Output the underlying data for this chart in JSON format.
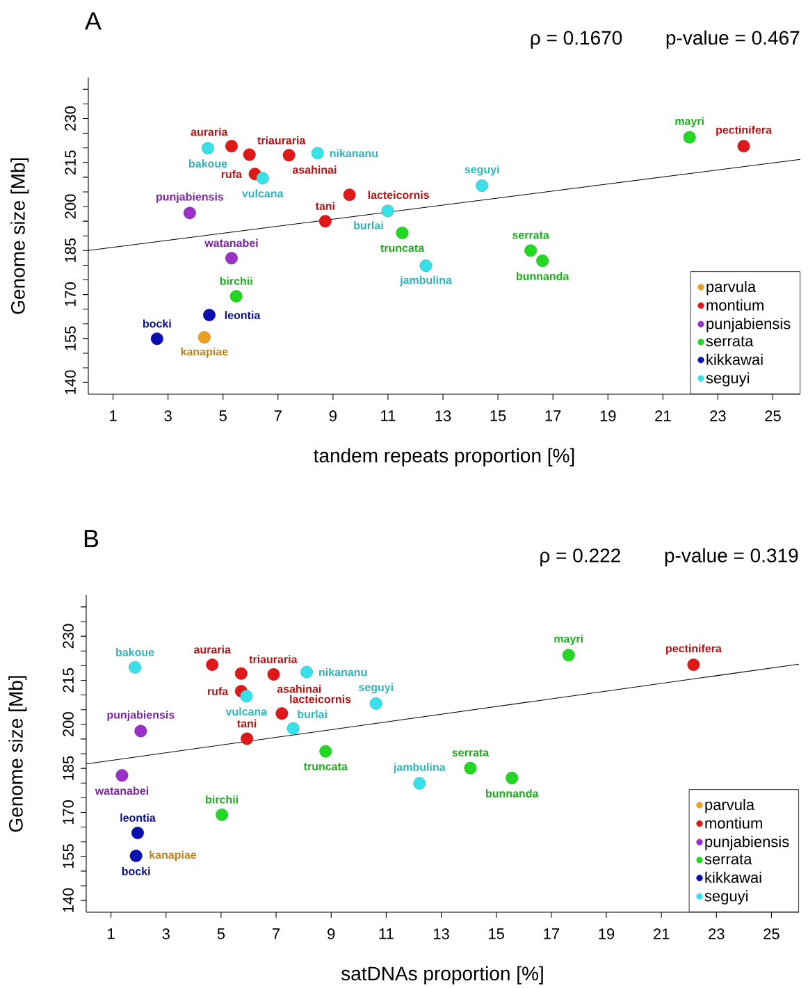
{
  "chart_data": [
    {
      "type": "scatter",
      "title": "A",
      "xlabel": "tandem repeats proportion [%]",
      "ylabel": "Genome size [Mb]",
      "xlim": [
        0.1,
        26
      ],
      "ylim": [
        136,
        244
      ],
      "xticks": [
        1,
        3,
        5,
        7,
        9,
        11,
        13,
        15,
        17,
        19,
        21,
        23,
        25
      ],
      "yticks": [
        140,
        {
          "value": 145,
          "label": null
        },
        {
          "value": 150,
          "label": null
        },
        155,
        {
          "value": 160,
          "label": null
        },
        {
          "value": 165,
          "label": null
        },
        170,
        {
          "value": 175,
          "label": null
        },
        {
          "value": 180,
          "label": null
        },
        185,
        {
          "value": 190,
          "label": null
        },
        {
          "value": 195,
          "label": null
        },
        200,
        {
          "value": 205,
          "label": null
        },
        {
          "value": 210,
          "label": null
        },
        215,
        {
          "value": 220,
          "label": null
        },
        {
          "value": 225,
          "label": null
        },
        230,
        {
          "value": 235,
          "label": null
        },
        {
          "value": 240,
          "label": null
        }
      ],
      "legend": "bottom right",
      "series": [
        {
          "name": "parvula",
          "color": "#e8a020",
          "marker": "circle",
          "x": [
            4.32
          ],
          "values": [
            155.4
          ]
        },
        {
          "name": "montium",
          "color": "#e01818",
          "marker": "circle",
          "x": [
            5.31,
            5.96,
            7.4,
            6.16,
            9.6,
            8.72,
            23.94
          ],
          "values": [
            220.6,
            217.7,
            217.5,
            211.1,
            204.0,
            195.0,
            220.6
          ]
        },
        {
          "name": "punjabiensis",
          "color": "#9a30c8",
          "marker": "circle",
          "x": [
            3.79,
            5.31
          ],
          "values": [
            197.8,
            182.4
          ]
        },
        {
          "name": "serrata",
          "color": "#22d822",
          "marker": "circle",
          "x": [
            11.52,
            5.48,
            16.19,
            16.62,
            21.97
          ],
          "values": [
            191.0,
            169.4,
            185.0,
            181.5,
            223.6
          ]
        },
        {
          "name": "kikkawai",
          "color": "#0a10b0",
          "marker": "circle",
          "x": [
            4.5,
            2.6
          ],
          "values": [
            163.0,
            154.9
          ]
        },
        {
          "name": "seguyi",
          "color": "#38e0e8",
          "marker": "circle",
          "x": [
            4.45,
            8.44,
            6.44,
            10.99,
            14.42,
            12.38
          ],
          "values": [
            219.9,
            218.2,
            209.7,
            198.5,
            207.1,
            179.8
          ]
        },
        {
          "type": "line",
          "color": "#000000",
          "x": [
            0.1,
            26
          ],
          "values": [
            185.0,
            216.1
          ]
        }
      ],
      "annotations": [
        "ρ = 0.1670",
        "p-value = 0.467",
        {
          "text": "triauraria",
          "x": 5.96,
          "y": 217.7
        },
        {
          "text": "auraria",
          "x": 5.31,
          "y": 220.6
        },
        {
          "text": "bakoue",
          "x": 4.45,
          "y": 219.9
        },
        {
          "text": "asahinai",
          "x": 7.4,
          "y": 217.5
        },
        {
          "text": "nikananu",
          "x": 8.44,
          "y": 218.2
        },
        {
          "text": "rufa",
          "x": 6.16,
          "y": 211.1
        },
        {
          "text": "vulcana",
          "x": 6.44,
          "y": 209.7
        },
        {
          "text": "lacteicornis",
          "x": 9.6,
          "y": 204.0
        },
        {
          "text": "punjabiensis",
          "x": 3.79,
          "y": 197.8
        },
        {
          "text": "burlai",
          "x": 10.99,
          "y": 198.5
        },
        {
          "text": "tani",
          "x": 8.72,
          "y": 195.0
        },
        {
          "text": "truncata",
          "x": 11.52,
          "y": 191.0
        },
        {
          "text": "watanabei",
          "x": 5.31,
          "y": 182.4
        },
        {
          "text": "birchii",
          "x": 5.48,
          "y": 169.4
        },
        {
          "text": "leontia",
          "x": 4.5,
          "y": 163.0
        },
        {
          "text": "bocki",
          "x": 2.6,
          "y": 154.9
        },
        {
          "text": "kanapiae",
          "x": 4.32,
          "y": 155.4
        },
        {
          "text": "seguyi",
          "x": 14.42,
          "y": 207.1
        },
        {
          "text": "jambulina",
          "x": 12.38,
          "y": 179.8
        },
        {
          "text": "serrata",
          "x": 16.19,
          "y": 185.0
        },
        {
          "text": "bunnanda",
          "x": 16.62,
          "y": 181.5
        },
        {
          "text": "mayri",
          "x": 21.97,
          "y": 223.6
        },
        {
          "text": "pectinifera",
          "x": 23.94,
          "y": 220.6
        }
      ]
    },
    {
      "type": "scatter",
      "title": "B",
      "xlabel": "satDNAs proportion [%]",
      "ylabel": "Genome size [Mb]",
      "xlim": [
        0.1,
        26
      ],
      "ylim": [
        136,
        244
      ],
      "xticks": [
        1,
        3,
        5,
        7,
        9,
        11,
        13,
        15,
        17,
        19,
        21,
        23,
        25
      ],
      "yticks": [
        140,
        {
          "value": 145,
          "label": null
        },
        {
          "value": 150,
          "label": null
        },
        155,
        {
          "value": 160,
          "label": null
        },
        {
          "value": 165,
          "label": null
        },
        170,
        {
          "value": 175,
          "label": null
        },
        {
          "value": 180,
          "label": null
        },
        185,
        {
          "value": 190,
          "label": null
        },
        {
          "value": 195,
          "label": null
        },
        200,
        {
          "value": 205,
          "label": null
        },
        {
          "value": 210,
          "label": null
        },
        215,
        {
          "value": 220,
          "label": null
        },
        {
          "value": 225,
          "label": null
        },
        230,
        {
          "value": 235,
          "label": null
        },
        {
          "value": 240,
          "label": null
        }
      ],
      "legend": "bottom right",
      "series": [
        {
          "name": "parvula",
          "color": "#e8a020",
          "marker": "circle"
        },
        {
          "name": "montium",
          "color": "#e01818",
          "marker": "circle",
          "x": [
            4.68,
            5.73,
            6.91,
            5.73,
            7.21,
            5.94,
            22.17
          ],
          "values": [
            220.3,
            217.3,
            217.0,
            211.3,
            203.7,
            195.1,
            220.3
          ]
        },
        {
          "name": "punjabiensis",
          "color": "#9a30c8",
          "marker": "circle",
          "x": [
            2.08,
            1.4
          ],
          "values": [
            197.7,
            182.6
          ]
        },
        {
          "name": "serrata",
          "color": "#22d822",
          "marker": "circle",
          "x": [
            8.8,
            5.03,
            14.06,
            15.57,
            17.63
          ],
          "values": [
            190.8,
            169.2,
            185.1,
            181.7,
            223.6
          ]
        },
        {
          "name": "kikkawai",
          "color": "#0a10b0",
          "marker": "circle",
          "x": [
            1.97,
            1.91
          ],
          "values": [
            163.0,
            155.2
          ]
        },
        {
          "name": "seguyi",
          "color": "#38e0e8",
          "marker": "circle",
          "x": [
            1.87,
            8.11,
            5.92,
            7.62,
            10.63,
            12.21
          ],
          "values": [
            219.4,
            217.8,
            209.6,
            198.6,
            207.1,
            179.9
          ]
        },
        {
          "type": "line",
          "color": "#000000",
          "x": [
            0.1,
            26
          ],
          "values": [
            186.5,
            220.5
          ]
        }
      ],
      "annotations": [
        "ρ = 0.222",
        "p-value = 0.319",
        {
          "text": "triauraria",
          "x": 5.73,
          "y": 217.3
        },
        {
          "text": "auraria",
          "x": 4.68,
          "y": 220.3
        },
        {
          "text": "bakoue",
          "x": 1.87,
          "y": 219.4
        },
        {
          "text": "asahinai",
          "x": 6.91,
          "y": 217.0
        },
        {
          "text": "nikananu",
          "x": 8.11,
          "y": 217.8
        },
        {
          "text": "rufa",
          "x": 5.73,
          "y": 211.3
        },
        {
          "text": "vulcana",
          "x": 5.92,
          "y": 209.6
        },
        {
          "text": "lacteicornis",
          "x": 7.21,
          "y": 203.7
        },
        {
          "text": "punjabiensis",
          "x": 2.08,
          "y": 197.7
        },
        {
          "text": "burlai",
          "x": 7.62,
          "y": 198.6
        },
        {
          "text": "tani",
          "x": 5.94,
          "y": 195.1
        },
        {
          "text": "truncata",
          "x": 8.8,
          "y": 190.8
        },
        {
          "text": "watanabei",
          "x": 1.4,
          "y": 182.6
        },
        {
          "text": "birchii",
          "x": 5.03,
          "y": 169.2
        },
        {
          "text": "leontia",
          "x": 1.97,
          "y": 163.0
        },
        {
          "text": "bocki",
          "x": 1.91,
          "y": 155.2
        },
        {
          "text": "kanapiae",
          "x": 1.93,
          "y": 155.2
        },
        {
          "text": "seguyi",
          "x": 10.63,
          "y": 207.1
        },
        {
          "text": "jambulina",
          "x": 12.21,
          "y": 179.9
        },
        {
          "text": "serrata",
          "x": 14.06,
          "y": 185.1
        },
        {
          "text": "bunnanda",
          "x": 15.57,
          "y": 181.7
        },
        {
          "text": "mayri",
          "x": 17.63,
          "y": 223.6
        },
        {
          "text": "pectinifera",
          "x": 22.17,
          "y": 220.3
        }
      ]
    }
  ]
}
